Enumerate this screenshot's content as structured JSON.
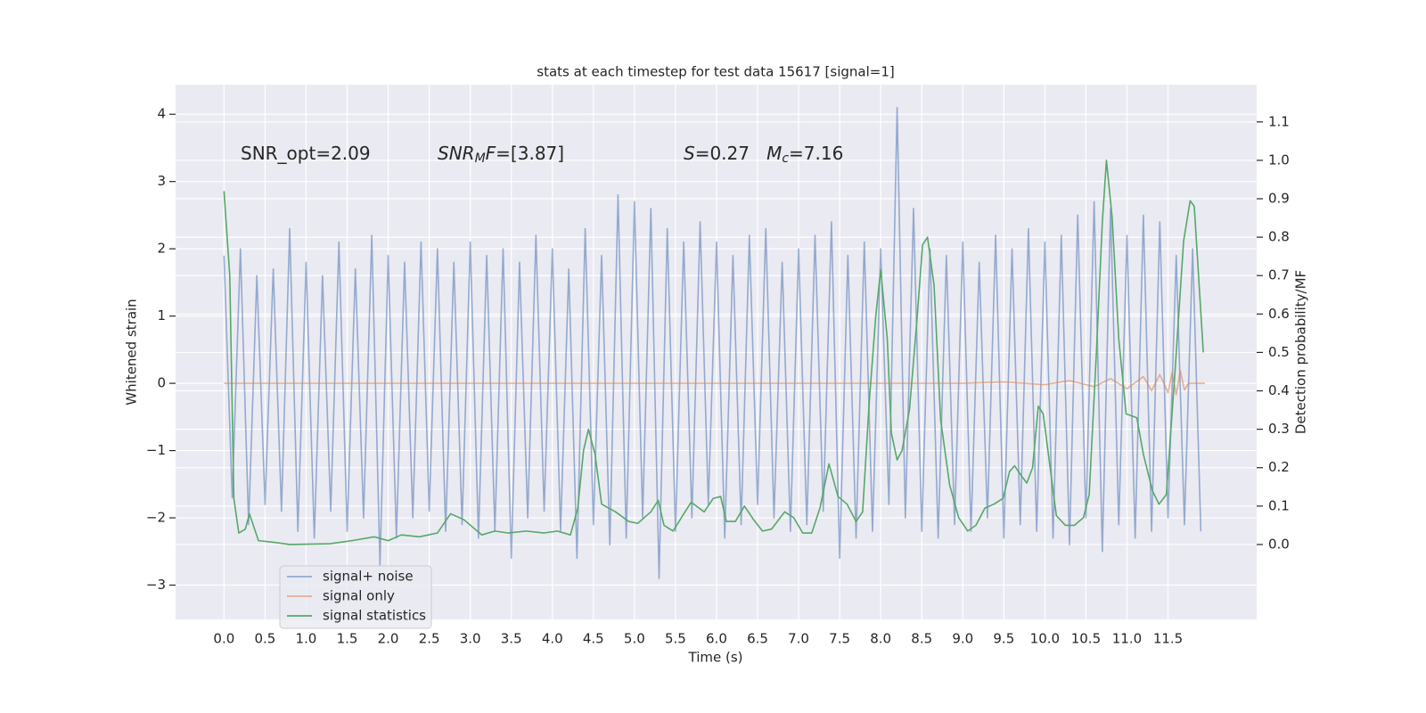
{
  "chart_data": {
    "type": "line",
    "title": "stats at each timestep for test data 15617 [signal=1]",
    "x_label": "Time (s)",
    "y_label": "Whitened strain",
    "y2_label": "Detection probability/MF",
    "xlim": [
      -0.59,
      12.58
    ],
    "ylim": [
      -3.51,
      4.44
    ],
    "y2lim": [
      -0.195,
      1.197
    ],
    "xticks": [
      {
        "value": 0,
        "label": "0.0"
      },
      0.5,
      {
        "value": 1,
        "label": "1.0"
      },
      1.5,
      {
        "value": 2,
        "label": "2.0"
      },
      2.5,
      {
        "value": 3,
        "label": "3.0"
      },
      3.5,
      {
        "value": 4,
        "label": "4.0"
      },
      4.5,
      {
        "value": 5,
        "label": "5.0"
      },
      5.5,
      {
        "value": 6,
        "label": "6.0"
      },
      6.5,
      {
        "value": 7,
        "label": "7.0"
      },
      7.5,
      {
        "value": 8,
        "label": "8.0"
      },
      8.5,
      {
        "value": 9,
        "label": "9.0"
      },
      9.5,
      {
        "value": 10,
        "label": "10.0"
      },
      10.5,
      {
        "value": 11,
        "label": "11.0"
      },
      11.5
    ],
    "yticks": [
      {
        "value": -3,
        "label": "−3"
      },
      {
        "value": -2,
        "label": "−2"
      },
      {
        "value": -1,
        "label": "−1"
      },
      0,
      1,
      2,
      3,
      4
    ],
    "y2ticks": [
      {
        "value": 0,
        "label": "0.0"
      },
      0.1,
      0.2,
      0.3,
      0.4,
      0.5,
      0.6,
      0.7,
      0.8,
      0.9,
      {
        "value": 1,
        "label": "1.0"
      },
      1.1
    ],
    "grid": true,
    "annotations": [
      {
        "segments": [
          {
            "text": "SNR_opt=2.09"
          }
        ]
      },
      {
        "segments": [
          {
            "text": "SNR",
            "italic": true
          },
          {
            "text": "M",
            "italic": true,
            "sub": true
          },
          {
            "text": "F",
            "italic": true
          },
          {
            "text": "=[3.87]"
          }
        ]
      },
      {
        "segments": [
          {
            "text": "S",
            "italic": true
          },
          {
            "text": "=0.27   "
          },
          {
            "text": "M",
            "italic": true
          },
          {
            "text": "c",
            "italic": true,
            "sub": true
          },
          {
            "text": "=7.16"
          }
        ]
      }
    ],
    "series": [
      {
        "name": "signal+ noise",
        "color": "#4c72b0",
        "alpha": 0.55,
        "x": [
          0,
          0.1,
          0.2,
          0.3,
          0.4,
          0.5,
          0.6,
          0.7,
          0.8,
          0.9,
          1,
          1.1,
          1.2,
          1.3,
          1.4,
          1.5,
          1.6,
          1.7,
          1.8,
          1.9,
          2,
          2.1,
          2.2,
          2.3,
          2.4,
          2.5,
          2.6,
          2.7,
          2.8,
          2.9,
          3,
          3.1,
          3.2,
          3.3,
          3.4,
          3.5,
          3.6,
          3.7,
          3.8,
          3.9,
          4,
          4.1,
          4.2,
          4.3,
          4.4,
          4.5,
          4.6,
          4.7,
          4.8,
          4.9,
          5,
          5.1,
          5.2,
          5.3,
          5.4,
          5.5,
          5.6,
          5.7,
          5.8,
          5.9,
          6,
          6.1,
          6.2,
          6.3,
          6.4,
          6.5,
          6.6,
          6.7,
          6.8,
          6.9,
          7,
          7.1,
          7.2,
          7.3,
          7.4,
          7.5,
          7.6,
          7.7,
          7.8,
          7.9,
          8,
          8.1,
          8.2,
          8.3,
          8.4,
          8.5,
          8.6,
          8.7,
          8.8,
          8.9,
          9,
          9.1,
          9.2,
          9.3,
          9.4,
          9.5,
          9.6,
          9.7,
          9.8,
          9.9,
          10,
          10.1,
          10.2,
          10.3,
          10.4,
          10.5,
          10.6,
          10.7,
          10.8,
          10.9,
          11,
          11.1,
          11.2,
          11.3,
          11.4,
          11.5,
          11.6,
          11.7,
          11.8,
          11.9
        ],
        "values": [
          1.9,
          -1.7,
          2.0,
          -2.1,
          1.6,
          -1.8,
          1.7,
          -1.9,
          2.3,
          -2.2,
          1.8,
          -2.3,
          1.6,
          -1.9,
          2.1,
          -2.2,
          1.7,
          -2.0,
          2.2,
          -2.7,
          1.9,
          -2.3,
          1.8,
          -2.0,
          2.1,
          -1.9,
          2.0,
          -2.2,
          1.8,
          -2.1,
          2.1,
          -2.3,
          1.9,
          -2.2,
          2.0,
          -2.6,
          1.8,
          -2.0,
          2.2,
          -1.9,
          2.0,
          -2.2,
          1.7,
          -2.6,
          2.3,
          -2.1,
          1.9,
          -2.4,
          2.8,
          -2.3,
          2.7,
          -2.0,
          2.6,
          -2.9,
          2.3,
          -2.2,
          2.1,
          -2.0,
          2.4,
          -1.8,
          2.1,
          -2.3,
          1.9,
          -2.1,
          2.2,
          -1.8,
          2.3,
          -2.0,
          1.8,
          -2.2,
          2.0,
          -2.1,
          2.2,
          -1.9,
          2.4,
          -2.6,
          1.9,
          -2.3,
          2.1,
          -2.2,
          2.0,
          -1.8,
          4.1,
          -2.0,
          2.6,
          -2.2,
          2.0,
          -2.3,
          1.9,
          -2.1,
          2.1,
          -2.2,
          1.8,
          -2.0,
          2.2,
          -2.3,
          2.0,
          -2.1,
          2.3,
          -2.2,
          2.1,
          -2.3,
          2.2,
          -2.4,
          2.5,
          -2.0,
          2.7,
          -2.5,
          2.6,
          -2.1,
          2.2,
          -2.3,
          2.5,
          -2.2,
          2.4,
          -2.0,
          1.9,
          -2.1,
          2.0,
          -2.2
        ]
      },
      {
        "name": "signal only",
        "color": "#dd8452",
        "alpha": 0.6,
        "x": [
          0,
          9,
          9.5,
          10,
          10.3,
          10.6,
          10.8,
          11,
          11.2,
          11.3,
          11.4,
          11.5,
          11.55,
          11.6,
          11.65,
          11.7,
          11.75,
          11.95
        ],
        "values": [
          0,
          0,
          0.02,
          -0.02,
          0.04,
          -0.05,
          0.07,
          -0.08,
          0.1,
          -0.11,
          0.13,
          -0.14,
          0.16,
          -0.17,
          0.19,
          -0.1,
          0,
          0
        ]
      },
      {
        "name": "signal statistics",
        "color": "#55a868",
        "alpha": 1,
        "axis": "y2",
        "x": [
          0,
          0.07,
          0.12,
          0.18,
          0.26,
          0.31,
          0.42,
          0.64,
          0.8,
          1.29,
          1.56,
          1.83,
          2,
          2.16,
          2.38,
          2.6,
          2.76,
          2.92,
          3.14,
          3.3,
          3.46,
          3.68,
          3.9,
          4.06,
          4.22,
          4.31,
          4.38,
          4.44,
          4.52,
          4.6,
          4.77,
          4.93,
          5.04,
          5.2,
          5.29,
          5.36,
          5.47,
          5.69,
          5.85,
          5.96,
          6.05,
          6.12,
          6.23,
          6.34,
          6.45,
          6.56,
          6.67,
          6.83,
          6.94,
          7.05,
          7.16,
          7.26,
          7.37,
          7.48,
          7.59,
          7.7,
          7.78,
          7.86,
          7.94,
          8,
          8.08,
          8.13,
          8.2,
          8.26,
          8.35,
          8.44,
          8.51,
          8.57,
          8.65,
          8.73,
          8.84,
          8.95,
          9.06,
          9.16,
          9.27,
          9.38,
          9.49,
          9.57,
          9.63,
          9.71,
          9.78,
          9.85,
          9.92,
          9.98,
          10.07,
          10.14,
          10.25,
          10.36,
          10.47,
          10.54,
          10.63,
          10.7,
          10.75,
          10.82,
          10.9,
          10.99,
          11.12,
          11.2,
          11.31,
          11.39,
          11.48,
          11.59,
          11.69,
          11.77,
          11.82,
          11.93
        ],
        "values": [
          0.92,
          0.7,
          0.12,
          0.03,
          0.04,
          0.08,
          0.01,
          0.005,
          0,
          0.002,
          0.01,
          0.02,
          0.01,
          0.025,
          0.02,
          0.03,
          0.08,
          0.065,
          0.025,
          0.035,
          0.03,
          0.035,
          0.03,
          0.035,
          0.025,
          0.095,
          0.245,
          0.3,
          0.235,
          0.105,
          0.085,
          0.06,
          0.055,
          0.085,
          0.115,
          0.05,
          0.035,
          0.11,
          0.085,
          0.12,
          0.125,
          0.06,
          0.06,
          0.1,
          0.065,
          0.035,
          0.04,
          0.085,
          0.07,
          0.03,
          0.03,
          0.095,
          0.21,
          0.125,
          0.105,
          0.06,
          0.085,
          0.37,
          0.595,
          0.715,
          0.535,
          0.29,
          0.22,
          0.245,
          0.35,
          0.58,
          0.78,
          0.8,
          0.675,
          0.325,
          0.155,
          0.07,
          0.035,
          0.05,
          0.095,
          0.105,
          0.12,
          0.19,
          0.205,
          0.18,
          0.16,
          0.2,
          0.36,
          0.34,
          0.19,
          0.075,
          0.05,
          0.05,
          0.07,
          0.13,
          0.51,
          0.84,
          1.0,
          0.85,
          0.535,
          0.34,
          0.33,
          0.235,
          0.14,
          0.105,
          0.13,
          0.465,
          0.79,
          0.895,
          0.88,
          0.5
        ]
      }
    ]
  }
}
